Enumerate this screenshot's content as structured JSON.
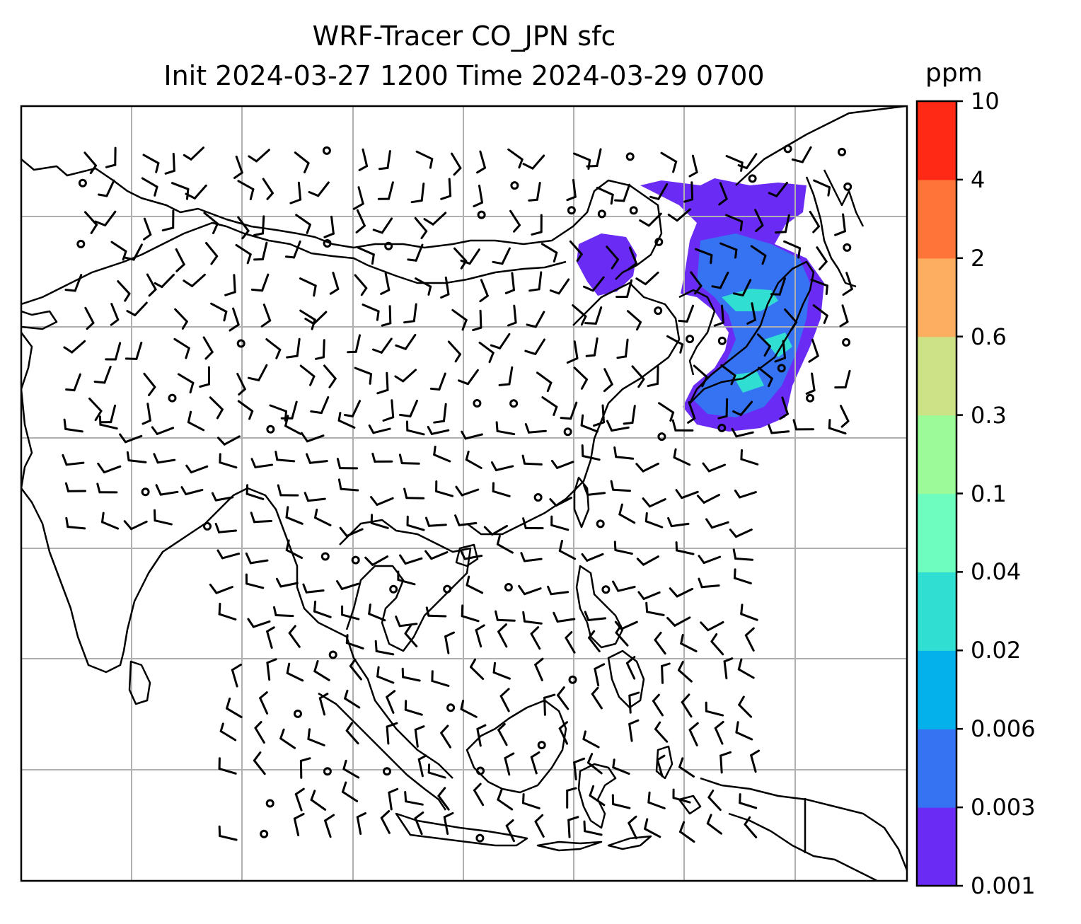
{
  "title": {
    "line1": "WRF-Tracer CO_JPN sfc",
    "line2": "Init 2024-03-27 1200 Time 2024-03-29 0700"
  },
  "colorbar": {
    "units": "ppm",
    "ticks": [
      "10",
      "4",
      "2",
      "0.6",
      "0.3",
      "0.1",
      "0.04",
      "0.02",
      "0.006",
      "0.003",
      "0.001"
    ],
    "colors": [
      "#6a2cf5",
      "#3573f3",
      "#05b1ea",
      "#30dfd1",
      "#6ffcbf",
      "#9dfa99",
      "#cde286",
      "#fdae61",
      "#ff7539",
      "#ff2915"
    ]
  },
  "map": {
    "gridline_color": "#b0b0b0",
    "coastline_color": "#000000",
    "wind_barb_color": "#000000",
    "plume_colors": {
      "outer": "#6a2cf5",
      "middle": "#3573f3",
      "inner": "#30dfd1"
    }
  }
}
